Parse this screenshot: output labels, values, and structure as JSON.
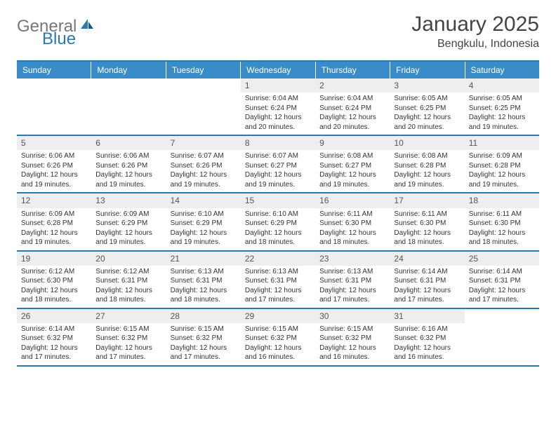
{
  "logo": {
    "text1": "General",
    "text2": "Blue"
  },
  "title": "January 2025",
  "location": "Bengkulu, Indonesia",
  "colors": {
    "header_bg": "#3a8cc9",
    "border": "#2a7ab0",
    "daynum_bg": "#eceef0",
    "text": "#333333"
  },
  "day_headers": [
    "Sunday",
    "Monday",
    "Tuesday",
    "Wednesday",
    "Thursday",
    "Friday",
    "Saturday"
  ],
  "weeks": [
    [
      {
        "num": "",
        "sunrise": "",
        "sunset": "",
        "daylight": "",
        "empty": true
      },
      {
        "num": "",
        "sunrise": "",
        "sunset": "",
        "daylight": "",
        "empty": true
      },
      {
        "num": "",
        "sunrise": "",
        "sunset": "",
        "daylight": "",
        "empty": true
      },
      {
        "num": "1",
        "sunrise": "Sunrise: 6:04 AM",
        "sunset": "Sunset: 6:24 PM",
        "daylight": "Daylight: 12 hours and 20 minutes."
      },
      {
        "num": "2",
        "sunrise": "Sunrise: 6:04 AM",
        "sunset": "Sunset: 6:24 PM",
        "daylight": "Daylight: 12 hours and 20 minutes."
      },
      {
        "num": "3",
        "sunrise": "Sunrise: 6:05 AM",
        "sunset": "Sunset: 6:25 PM",
        "daylight": "Daylight: 12 hours and 20 minutes."
      },
      {
        "num": "4",
        "sunrise": "Sunrise: 6:05 AM",
        "sunset": "Sunset: 6:25 PM",
        "daylight": "Daylight: 12 hours and 19 minutes."
      }
    ],
    [
      {
        "num": "5",
        "sunrise": "Sunrise: 6:06 AM",
        "sunset": "Sunset: 6:26 PM",
        "daylight": "Daylight: 12 hours and 19 minutes."
      },
      {
        "num": "6",
        "sunrise": "Sunrise: 6:06 AM",
        "sunset": "Sunset: 6:26 PM",
        "daylight": "Daylight: 12 hours and 19 minutes."
      },
      {
        "num": "7",
        "sunrise": "Sunrise: 6:07 AM",
        "sunset": "Sunset: 6:26 PM",
        "daylight": "Daylight: 12 hours and 19 minutes."
      },
      {
        "num": "8",
        "sunrise": "Sunrise: 6:07 AM",
        "sunset": "Sunset: 6:27 PM",
        "daylight": "Daylight: 12 hours and 19 minutes."
      },
      {
        "num": "9",
        "sunrise": "Sunrise: 6:08 AM",
        "sunset": "Sunset: 6:27 PM",
        "daylight": "Daylight: 12 hours and 19 minutes."
      },
      {
        "num": "10",
        "sunrise": "Sunrise: 6:08 AM",
        "sunset": "Sunset: 6:28 PM",
        "daylight": "Daylight: 12 hours and 19 minutes."
      },
      {
        "num": "11",
        "sunrise": "Sunrise: 6:09 AM",
        "sunset": "Sunset: 6:28 PM",
        "daylight": "Daylight: 12 hours and 19 minutes."
      }
    ],
    [
      {
        "num": "12",
        "sunrise": "Sunrise: 6:09 AM",
        "sunset": "Sunset: 6:28 PM",
        "daylight": "Daylight: 12 hours and 19 minutes."
      },
      {
        "num": "13",
        "sunrise": "Sunrise: 6:09 AM",
        "sunset": "Sunset: 6:29 PM",
        "daylight": "Daylight: 12 hours and 19 minutes."
      },
      {
        "num": "14",
        "sunrise": "Sunrise: 6:10 AM",
        "sunset": "Sunset: 6:29 PM",
        "daylight": "Daylight: 12 hours and 19 minutes."
      },
      {
        "num": "15",
        "sunrise": "Sunrise: 6:10 AM",
        "sunset": "Sunset: 6:29 PM",
        "daylight": "Daylight: 12 hours and 18 minutes."
      },
      {
        "num": "16",
        "sunrise": "Sunrise: 6:11 AM",
        "sunset": "Sunset: 6:30 PM",
        "daylight": "Daylight: 12 hours and 18 minutes."
      },
      {
        "num": "17",
        "sunrise": "Sunrise: 6:11 AM",
        "sunset": "Sunset: 6:30 PM",
        "daylight": "Daylight: 12 hours and 18 minutes."
      },
      {
        "num": "18",
        "sunrise": "Sunrise: 6:11 AM",
        "sunset": "Sunset: 6:30 PM",
        "daylight": "Daylight: 12 hours and 18 minutes."
      }
    ],
    [
      {
        "num": "19",
        "sunrise": "Sunrise: 6:12 AM",
        "sunset": "Sunset: 6:30 PM",
        "daylight": "Daylight: 12 hours and 18 minutes."
      },
      {
        "num": "20",
        "sunrise": "Sunrise: 6:12 AM",
        "sunset": "Sunset: 6:31 PM",
        "daylight": "Daylight: 12 hours and 18 minutes."
      },
      {
        "num": "21",
        "sunrise": "Sunrise: 6:13 AM",
        "sunset": "Sunset: 6:31 PM",
        "daylight": "Daylight: 12 hours and 18 minutes."
      },
      {
        "num": "22",
        "sunrise": "Sunrise: 6:13 AM",
        "sunset": "Sunset: 6:31 PM",
        "daylight": "Daylight: 12 hours and 17 minutes."
      },
      {
        "num": "23",
        "sunrise": "Sunrise: 6:13 AM",
        "sunset": "Sunset: 6:31 PM",
        "daylight": "Daylight: 12 hours and 17 minutes."
      },
      {
        "num": "24",
        "sunrise": "Sunrise: 6:14 AM",
        "sunset": "Sunset: 6:31 PM",
        "daylight": "Daylight: 12 hours and 17 minutes."
      },
      {
        "num": "25",
        "sunrise": "Sunrise: 6:14 AM",
        "sunset": "Sunset: 6:31 PM",
        "daylight": "Daylight: 12 hours and 17 minutes."
      }
    ],
    [
      {
        "num": "26",
        "sunrise": "Sunrise: 6:14 AM",
        "sunset": "Sunset: 6:32 PM",
        "daylight": "Daylight: 12 hours and 17 minutes."
      },
      {
        "num": "27",
        "sunrise": "Sunrise: 6:15 AM",
        "sunset": "Sunset: 6:32 PM",
        "daylight": "Daylight: 12 hours and 17 minutes."
      },
      {
        "num": "28",
        "sunrise": "Sunrise: 6:15 AM",
        "sunset": "Sunset: 6:32 PM",
        "daylight": "Daylight: 12 hours and 17 minutes."
      },
      {
        "num": "29",
        "sunrise": "Sunrise: 6:15 AM",
        "sunset": "Sunset: 6:32 PM",
        "daylight": "Daylight: 12 hours and 16 minutes."
      },
      {
        "num": "30",
        "sunrise": "Sunrise: 6:15 AM",
        "sunset": "Sunset: 6:32 PM",
        "daylight": "Daylight: 12 hours and 16 minutes."
      },
      {
        "num": "31",
        "sunrise": "Sunrise: 6:16 AM",
        "sunset": "Sunset: 6:32 PM",
        "daylight": "Daylight: 12 hours and 16 minutes."
      },
      {
        "num": "",
        "sunrise": "",
        "sunset": "",
        "daylight": "",
        "empty": true
      }
    ]
  ]
}
